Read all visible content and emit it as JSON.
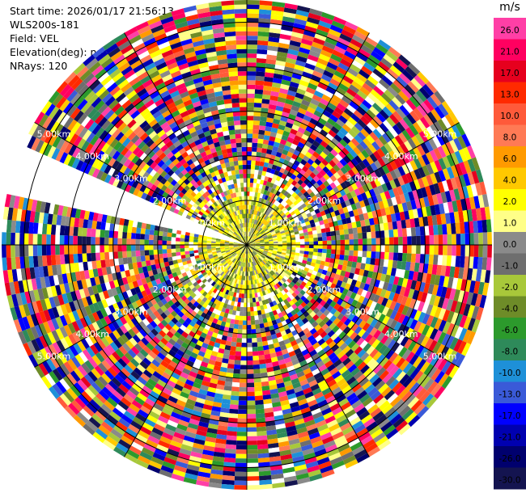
{
  "info": {
    "start_time": "Start time: 2026/01/17 21:56:13",
    "site": "WLS200s-181",
    "field": "Field: VEL",
    "elevation": "Elevation(deg): nan",
    "nrays": "NRays: 120"
  },
  "chart_data": {
    "type": "heatmap",
    "subtype": "polar-ppi",
    "field": "VEL",
    "unit": "m/s",
    "n_rays": 120,
    "ring_labels_km": [
      "1.00km",
      "2.00km",
      "3.00km",
      "4.00km",
      "5.00km"
    ],
    "max_range_km": 5.5,
    "colorbar": {
      "unit": "m/s",
      "ticks": [
        "26.0",
        "21.0",
        "17.0",
        "13.0",
        "10.0",
        "8.0",
        "6.0",
        "4.0",
        "2.0",
        "1.0",
        "0.0",
        "-1.0",
        "-2.0",
        "-4.0",
        "-6.0",
        "-8.0",
        "-10.0",
        "-13.0",
        "-17.0",
        "-21.0",
        "-26.0",
        "-30.0"
      ],
      "bands": [
        {
          "value": 26.0,
          "color": "#ff3fa6"
        },
        {
          "value": 21.0,
          "color": "#ff0060"
        },
        {
          "value": 17.0,
          "color": "#e6001e"
        },
        {
          "value": 13.0,
          "color": "#ff2a00"
        },
        {
          "value": 10.0,
          "color": "#ff5a3a"
        },
        {
          "value": 8.0,
          "color": "#ff7a55"
        },
        {
          "value": 6.0,
          "color": "#ff9a00"
        },
        {
          "value": 4.0,
          "color": "#ffc800"
        },
        {
          "value": 2.0,
          "color": "#ffff00"
        },
        {
          "value": 1.0,
          "color": "#ffff88"
        },
        {
          "value": 0.0,
          "color": "#8a8a8a"
        },
        {
          "value": -1.0,
          "color": "#6e6e6e"
        },
        {
          "value": -2.0,
          "color": "#a8c83a"
        },
        {
          "value": -4.0,
          "color": "#6e8c28"
        },
        {
          "value": -6.0,
          "color": "#2c9a2c"
        },
        {
          "value": -8.0,
          "color": "#2e8a5a"
        },
        {
          "value": -10.0,
          "color": "#1e90d8"
        },
        {
          "value": -13.0,
          "color": "#3a5ad8"
        },
        {
          "value": -17.0,
          "color": "#0000ff"
        },
        {
          "value": -21.0,
          "color": "#0000b0"
        },
        {
          "value": -26.0,
          "color": "#00006e"
        },
        {
          "value": -30.0,
          "color": "#141450"
        }
      ]
    },
    "missing_sector_deg": [
      282,
      295
    ],
    "grid": true
  }
}
